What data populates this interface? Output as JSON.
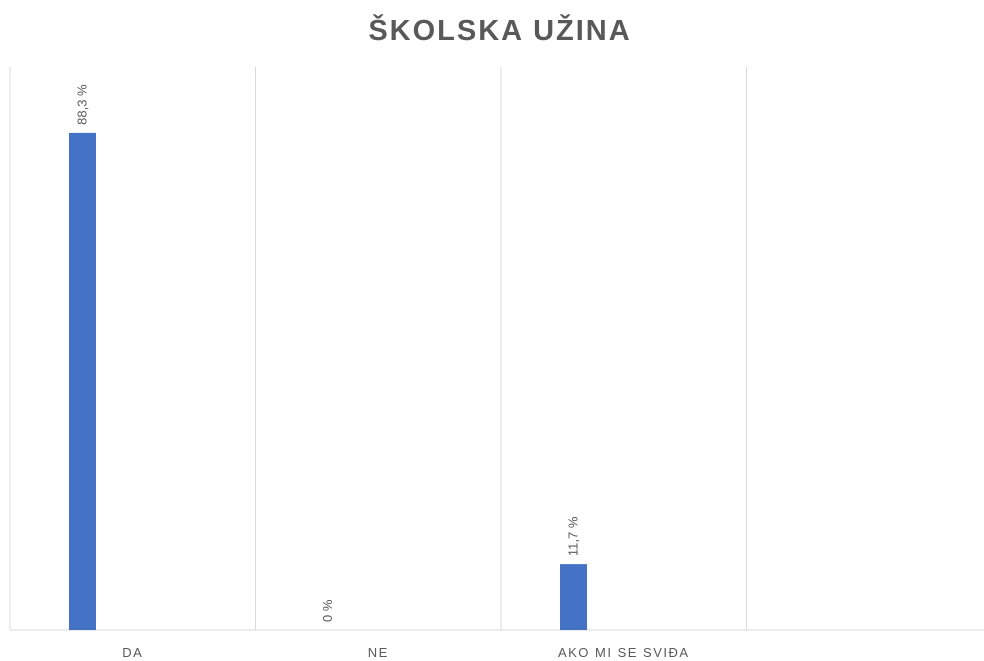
{
  "chart_data": {
    "type": "bar",
    "title": "ŠKOLSKA UŽINA",
    "categories": [
      "DA",
      "NE",
      "AKO MI SE SVIĐA",
      null
    ],
    "values": [
      88.3,
      0,
      11.7,
      null
    ],
    "value_labels": [
      "88,3 %",
      "0 %",
      "11,7 %",
      null
    ],
    "color": "#4472c4",
    "ylim": [
      0,
      100
    ],
    "grid": true
  }
}
